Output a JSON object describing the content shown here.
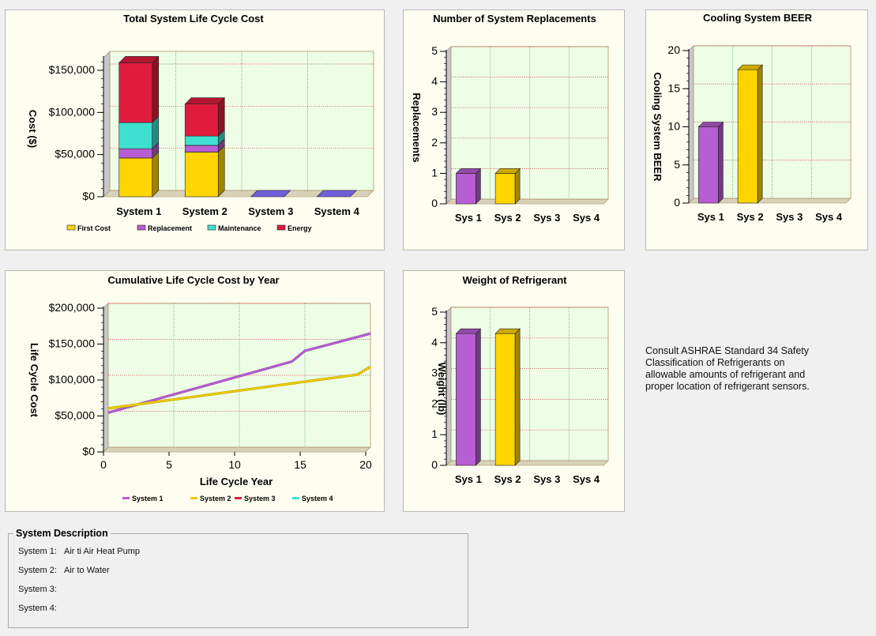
{
  "colors": {
    "plot_bg": "#eefde6",
    "panel_bg": "#fefef0",
    "wall": "#c8c8c8",
    "gridv": "#2e9b2e",
    "gridh": "#c83030",
    "first": "#ffd500",
    "replacement": "#b85ed4",
    "maintenance": "#3ee0d0",
    "energy": "#e01c3c",
    "sys1": "#b85ed4",
    "sys2": "#f0cc00",
    "sys3": "#e01c3c",
    "sys4": "#3ee0d0",
    "sysbar3": "#7060d8"
  },
  "chart_data": [
    {
      "id": "lcc",
      "type": "bar",
      "stacked": true,
      "title": "Total System Life Cycle Cost",
      "ylabel": "Cost ($)",
      "xlabel": "",
      "categories": [
        "System 1",
        "System 2",
        "System 3",
        "System 4"
      ],
      "ylim": [
        0,
        165000
      ],
      "yticks": [
        0,
        50000,
        100000,
        150000
      ],
      "ytick_labels": [
        "$0",
        "$50,000",
        "$100,000",
        "$150,000"
      ],
      "series": [
        {
          "name": "First Cost",
          "values": [
            46000,
            53000,
            0,
            0
          ],
          "color": "#ffd500"
        },
        {
          "name": "Replacement",
          "values": [
            11000,
            8000,
            0,
            0
          ],
          "color": "#b85ed4"
        },
        {
          "name": "Maintenance",
          "values": [
            31000,
            11000,
            0,
            0
          ],
          "color": "#3ee0d0"
        },
        {
          "name": "Energy",
          "values": [
            71000,
            38000,
            0,
            0
          ],
          "color": "#e01c3c"
        }
      ],
      "legend": "bottom",
      "grid": true
    },
    {
      "id": "repl",
      "type": "bar",
      "title": "Number of System Replacements",
      "ylabel": "Replacements",
      "xlabel": "",
      "categories": [
        "Sys 1",
        "Sys 2",
        "Sys 3",
        "Sys 4"
      ],
      "ylim": [
        0,
        5
      ],
      "yticks": [
        0,
        1,
        2,
        3,
        4,
        5
      ],
      "ytick_labels": [
        "0",
        "1",
        "2",
        "3",
        "4",
        "5"
      ],
      "values": [
        1,
        1,
        0,
        0
      ],
      "colors": [
        "#b85ed4",
        "#ffd500",
        "#b85ed4",
        "#b85ed4"
      ],
      "grid": true
    },
    {
      "id": "beer",
      "type": "bar",
      "title": "Cooling System BEER",
      "ylabel": "Cooling System BEER",
      "xlabel": "",
      "categories": [
        "Sys 1",
        "Sys 2",
        "Sys 3",
        "Sys 4"
      ],
      "ylim": [
        0,
        20
      ],
      "yticks": [
        0,
        5,
        10,
        15,
        20
      ],
      "ytick_labels": [
        "0",
        "5",
        "10",
        "15",
        "20"
      ],
      "values": [
        10,
        17.5,
        0,
        0
      ],
      "colors": [
        "#b85ed4",
        "#ffd500",
        "#b85ed4",
        "#b85ed4"
      ],
      "grid": true
    },
    {
      "id": "cum",
      "type": "line",
      "title": "Cumulative Life Cycle Cost by Year",
      "xlabel": "Life Cycle Year",
      "ylabel": "Life Cycle Cost",
      "xlim": [
        0,
        20
      ],
      "xticks": [
        0,
        5,
        10,
        15,
        20
      ],
      "xtick_labels": [
        "0",
        "5",
        "10",
        "15",
        "20"
      ],
      "ylim": [
        0,
        200000
      ],
      "yticks": [
        0,
        50000,
        100000,
        150000,
        200000
      ],
      "ytick_labels": [
        "$0",
        "$50,000",
        "$100,000",
        "$150,000",
        "$200,000"
      ],
      "series": [
        {
          "name": "System 1",
          "color": "#b85ed4",
          "x": [
            0,
            14,
            15,
            20
          ],
          "y": [
            48000,
            119000,
            134000,
            158000
          ]
        },
        {
          "name": "System 2",
          "color": "#f0cc00",
          "x": [
            0,
            19,
            20
          ],
          "y": [
            54000,
            101000,
            112000
          ]
        },
        {
          "name": "System 3",
          "color": "#e01c3c",
          "x": [],
          "y": []
        },
        {
          "name": "System 4",
          "color": "#3ee0d0",
          "x": [],
          "y": []
        }
      ],
      "legend": "bottom",
      "grid": true
    },
    {
      "id": "weight",
      "type": "bar",
      "title": "Weight of Refrigerant",
      "ylabel": "Weight (lb)",
      "xlabel": "",
      "categories": [
        "Sys 1",
        "Sys 2",
        "Sys 3",
        "Sys 4"
      ],
      "ylim": [
        0,
        5
      ],
      "yticks": [
        0,
        1,
        2,
        3,
        4,
        5
      ],
      "ytick_labels": [
        "0",
        "1",
        "2",
        "3",
        "4",
        "5"
      ],
      "values": [
        4.3,
        4.3,
        0,
        0
      ],
      "colors": [
        "#b85ed4",
        "#ffd500",
        "#b85ed4",
        "#b85ed4"
      ],
      "grid": true
    }
  ],
  "note": {
    "lines": [
      "Consult ASHRAE Standard 34 Safety",
      "Classification of Refrigerants on",
      "allowable amounts of refrigerant and",
      "proper location of refrigerant sensors."
    ]
  },
  "system_description": {
    "title": "System Description",
    "rows": [
      {
        "label": "System  1:",
        "value": "Air ti Air Heat Pump"
      },
      {
        "label": "System  2:",
        "value": "Air to Water"
      },
      {
        "label": "System  3:",
        "value": ""
      },
      {
        "label": "System  4:",
        "value": ""
      }
    ]
  }
}
